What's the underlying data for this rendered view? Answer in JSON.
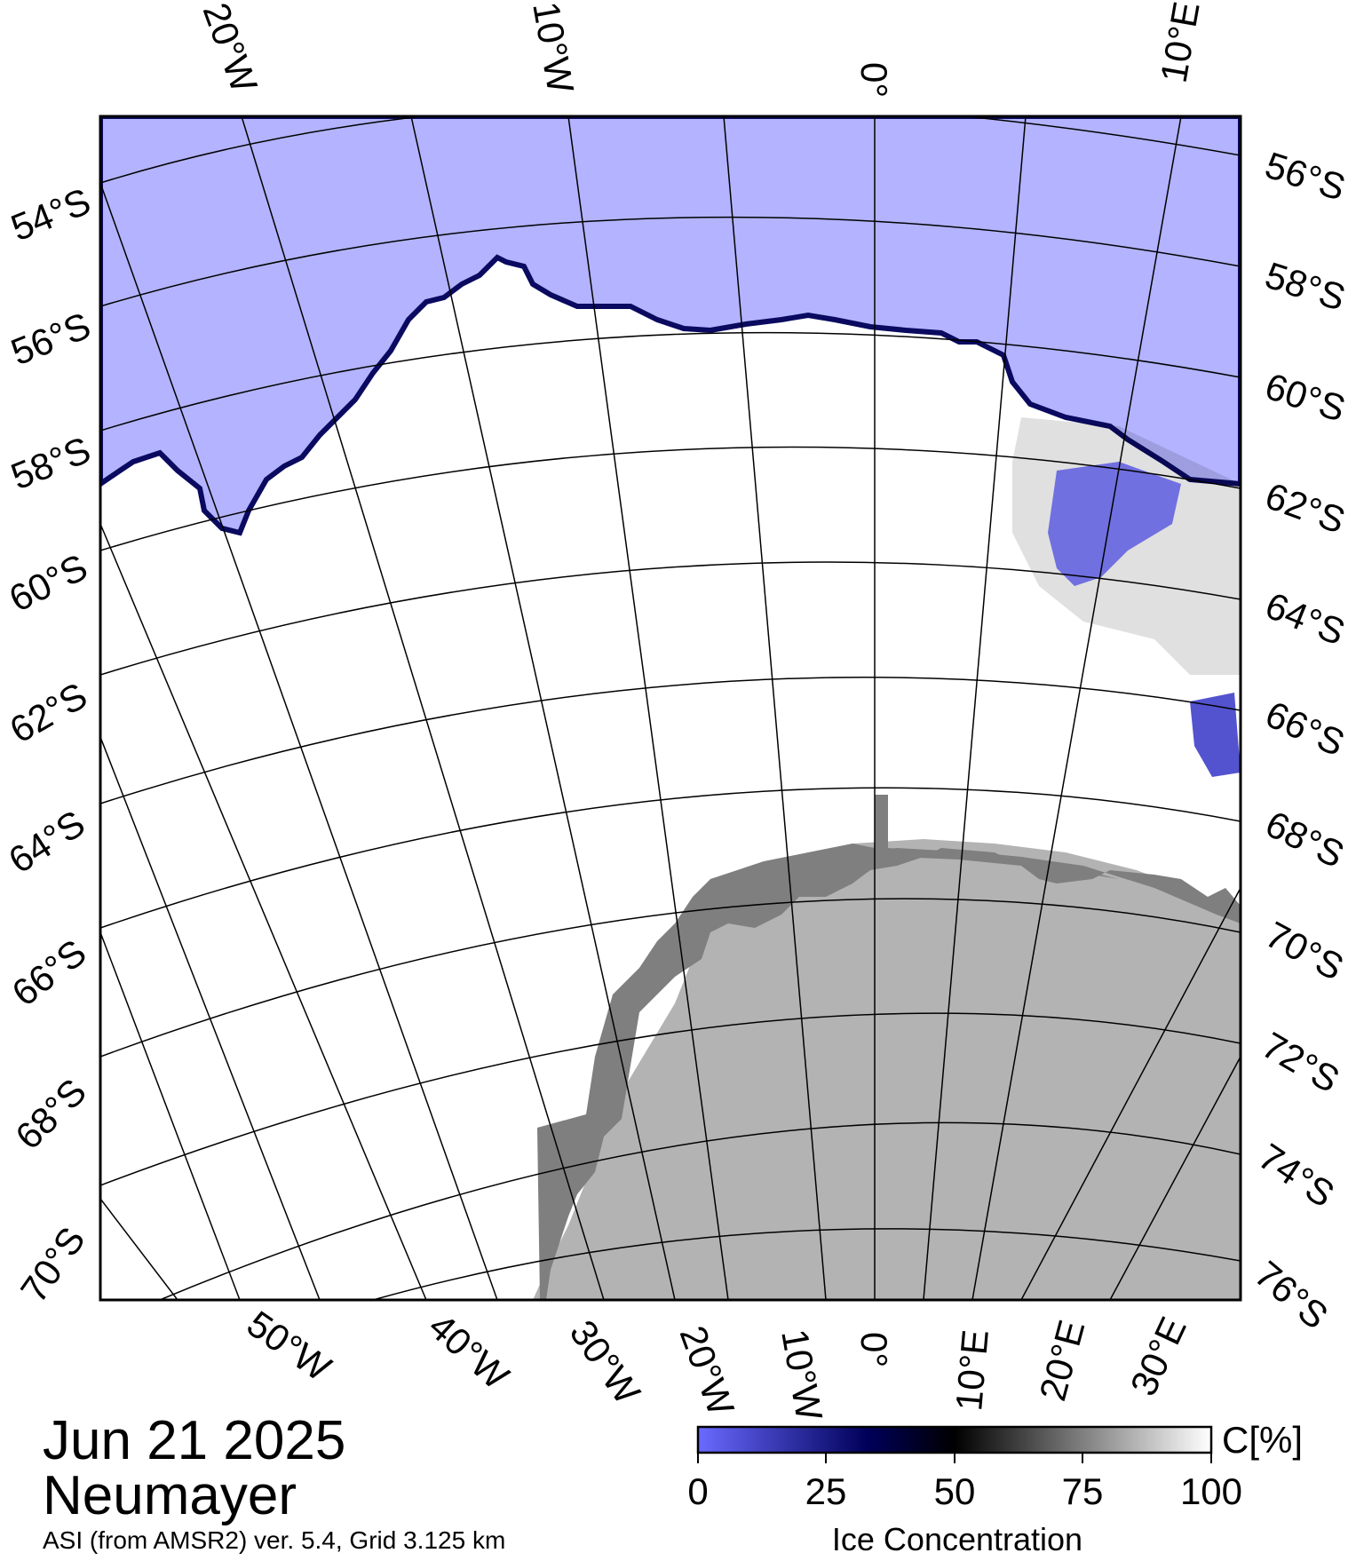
{
  "map": {
    "date": "Jun 21 2025",
    "region": "Neumayer",
    "source": "ASI (from AMSR2) ver. 5.4,  Grid 3.125 km",
    "top_lon_labels": [
      "20°W",
      "10°W",
      "0°",
      "10°E"
    ],
    "left_lat_labels": [
      "54°S",
      "56°S",
      "58°S",
      "60°S",
      "62°S",
      "64°S",
      "66°S",
      "68°S",
      "70°S"
    ],
    "right_lat_labels": [
      "56°S",
      "58°S",
      "60°S",
      "62°S",
      "64°S",
      "66°S",
      "68°S",
      "70°S",
      "72°S",
      "74°S",
      "76°S"
    ],
    "bottom_lon_labels": [
      "50°W",
      "40°W",
      "30°W",
      "20°W",
      "10°W",
      "0°",
      "10°E",
      "20°E",
      "30°E"
    ],
    "colors": {
      "open_water": "#b3b3ff",
      "sea_ice": "#ffffff",
      "ice_shelf": "#7f7f7f",
      "land": "#b3b3b3",
      "ice_edge": "#0a0a60"
    }
  },
  "colorbar": {
    "unit_label": "C[%]",
    "title": "Ice Concentration",
    "ticks": [
      "0",
      "25",
      "50",
      "75",
      "100"
    ],
    "colors": [
      "#6a6aff",
      "#00005a",
      "#000000",
      "#ffffff"
    ]
  }
}
